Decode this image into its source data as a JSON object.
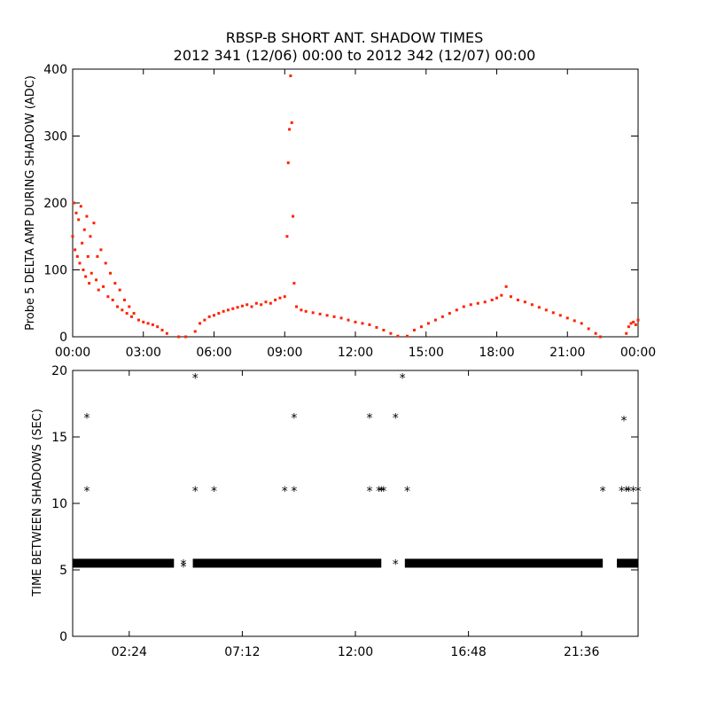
{
  "header": {
    "title": "RBSP-B SHORT ANT. SHADOW TIMES",
    "subtitle": "2012 341 (12/06) 00:00 to 2012 342 (12/07) 00:00"
  },
  "chart_data": [
    {
      "type": "scatter",
      "title": "",
      "xlabel": "",
      "ylabel": "Probe 5 DELTA AMP DURING SHADOW (ADC)",
      "xlim": [
        0,
        24
      ],
      "ylim": [
        0,
        400
      ],
      "x_ticks": [
        {
          "value": 0,
          "label": "00:00"
        },
        {
          "value": 3,
          "label": "03:00"
        },
        {
          "value": 6,
          "label": "06:00"
        },
        {
          "value": 9,
          "label": "09:00"
        },
        {
          "value": 12,
          "label": "12:00"
        },
        {
          "value": 15,
          "label": "15:00"
        },
        {
          "value": 18,
          "label": "18:00"
        },
        {
          "value": 21,
          "label": "21:00"
        },
        {
          "value": 24,
          "label": "00:00"
        }
      ],
      "y_ticks": [
        {
          "value": 0,
          "label": "0"
        },
        {
          "value": 100,
          "label": "100"
        },
        {
          "value": 200,
          "label": "200"
        },
        {
          "value": 300,
          "label": "300"
        },
        {
          "value": 400,
          "label": "400"
        }
      ],
      "color": "#ff2200",
      "series": [
        {
          "points": [
            [
              0.0,
              150
            ],
            [
              0.05,
              200
            ],
            [
              0.1,
              130
            ],
            [
              0.15,
              185
            ],
            [
              0.2,
              120
            ],
            [
              0.25,
              175
            ],
            [
              0.3,
              110
            ],
            [
              0.35,
              195
            ],
            [
              0.4,
              140
            ],
            [
              0.45,
              100
            ],
            [
              0.5,
              160
            ],
            [
              0.55,
              90
            ],
            [
              0.6,
              180
            ],
            [
              0.65,
              120
            ],
            [
              0.7,
              80
            ],
            [
              0.75,
              150
            ],
            [
              0.8,
              95
            ],
            [
              0.9,
              170
            ],
            [
              1.0,
              85
            ],
            [
              1.05,
              120
            ],
            [
              1.1,
              70
            ],
            [
              1.2,
              130
            ],
            [
              1.3,
              75
            ],
            [
              1.4,
              110
            ],
            [
              1.5,
              60
            ],
            [
              1.6,
              95
            ],
            [
              1.7,
              55
            ],
            [
              1.8,
              80
            ],
            [
              1.9,
              45
            ],
            [
              2.0,
              70
            ],
            [
              2.1,
              40
            ],
            [
              2.2,
              55
            ],
            [
              2.3,
              35
            ],
            [
              2.4,
              45
            ],
            [
              2.5,
              30
            ],
            [
              2.6,
              35
            ],
            [
              2.8,
              25
            ],
            [
              3.0,
              22
            ],
            [
              3.2,
              20
            ],
            [
              3.4,
              18
            ],
            [
              3.6,
              15
            ],
            [
              3.8,
              10
            ],
            [
              4.0,
              5
            ],
            [
              4.5,
              0
            ],
            [
              4.8,
              0
            ],
            [
              5.2,
              8
            ],
            [
              5.4,
              20
            ],
            [
              5.6,
              25
            ],
            [
              5.8,
              30
            ],
            [
              6.0,
              32
            ],
            [
              6.2,
              35
            ],
            [
              6.4,
              38
            ],
            [
              6.6,
              40
            ],
            [
              6.8,
              42
            ],
            [
              7.0,
              44
            ],
            [
              7.2,
              46
            ],
            [
              7.4,
              48
            ],
            [
              7.6,
              45
            ],
            [
              7.8,
              50
            ],
            [
              8.0,
              48
            ],
            [
              8.2,
              52
            ],
            [
              8.4,
              50
            ],
            [
              8.6,
              55
            ],
            [
              8.8,
              58
            ],
            [
              9.0,
              60
            ],
            [
              9.1,
              150
            ],
            [
              9.15,
              260
            ],
            [
              9.2,
              310
            ],
            [
              9.25,
              390
            ],
            [
              9.3,
              320
            ],
            [
              9.35,
              180
            ],
            [
              9.4,
              80
            ],
            [
              9.5,
              45
            ],
            [
              9.7,
              40
            ],
            [
              9.9,
              38
            ],
            [
              10.2,
              36
            ],
            [
              10.5,
              34
            ],
            [
              10.8,
              32
            ],
            [
              11.1,
              30
            ],
            [
              11.4,
              28
            ],
            [
              11.7,
              25
            ],
            [
              12.0,
              22
            ],
            [
              12.3,
              20
            ],
            [
              12.6,
              18
            ],
            [
              12.9,
              14
            ],
            [
              13.2,
              10
            ],
            [
              13.5,
              5
            ],
            [
              13.8,
              1
            ],
            [
              14.2,
              1
            ],
            [
              14.5,
              10
            ],
            [
              14.8,
              15
            ],
            [
              15.1,
              20
            ],
            [
              15.4,
              25
            ],
            [
              15.7,
              30
            ],
            [
              16.0,
              35
            ],
            [
              16.3,
              40
            ],
            [
              16.6,
              45
            ],
            [
              16.9,
              48
            ],
            [
              17.2,
              50
            ],
            [
              17.5,
              52
            ],
            [
              17.8,
              55
            ],
            [
              18.0,
              58
            ],
            [
              18.2,
              62
            ],
            [
              18.4,
              75
            ],
            [
              18.6,
              60
            ],
            [
              18.9,
              55
            ],
            [
              19.2,
              52
            ],
            [
              19.5,
              48
            ],
            [
              19.8,
              44
            ],
            [
              20.1,
              40
            ],
            [
              20.4,
              36
            ],
            [
              20.7,
              32
            ],
            [
              21.0,
              28
            ],
            [
              21.3,
              24
            ],
            [
              21.6,
              20
            ],
            [
              21.9,
              12
            ],
            [
              22.2,
              5
            ],
            [
              22.4,
              0
            ],
            [
              23.5,
              5
            ],
            [
              23.6,
              15
            ],
            [
              23.7,
              20
            ],
            [
              23.8,
              22
            ],
            [
              23.9,
              18
            ],
            [
              24.0,
              25
            ]
          ]
        }
      ]
    },
    {
      "type": "scatter",
      "title": "",
      "xlabel": "",
      "ylabel": "TIME BETWEEN SHADOWS (SEC)",
      "xlim": [
        0,
        24
      ],
      "ylim": [
        0,
        20
      ],
      "x_ticks": [
        {
          "value": 2.4,
          "label": "02:24"
        },
        {
          "value": 7.2,
          "label": "07:12"
        },
        {
          "value": 12.0,
          "label": "12:00"
        },
        {
          "value": 16.8,
          "label": "16:48"
        },
        {
          "value": 21.6,
          "label": "21:36"
        }
      ],
      "y_ticks": [
        {
          "value": 0,
          "label": "0"
        },
        {
          "value": 5,
          "label": "5"
        },
        {
          "value": 10,
          "label": "10"
        },
        {
          "value": 15,
          "label": "15"
        },
        {
          "value": 20,
          "label": "20"
        }
      ],
      "color": "#000000",
      "bands": [
        {
          "x0": 0.0,
          "x1": 4.3,
          "y": 5.5
        },
        {
          "x0": 5.1,
          "x1": 13.1,
          "y": 5.5
        },
        {
          "x0": 14.1,
          "x1": 22.5,
          "y": 5.5
        },
        {
          "x0": 23.1,
          "x1": 24.0,
          "y": 5.5
        }
      ],
      "points": [
        [
          0.6,
          16.5
        ],
        [
          0.6,
          11.0
        ],
        [
          2.2,
          5.5
        ],
        [
          4.7,
          5.5
        ],
        [
          4.7,
          5.3
        ],
        [
          5.2,
          19.5
        ],
        [
          5.2,
          11.0
        ],
        [
          6.0,
          11.0
        ],
        [
          9.0,
          11.0
        ],
        [
          9.4,
          16.5
        ],
        [
          9.4,
          11.0
        ],
        [
          12.6,
          16.5
        ],
        [
          12.6,
          11.0
        ],
        [
          13.0,
          11.0
        ],
        [
          13.1,
          11.0
        ],
        [
          13.2,
          11.0
        ],
        [
          13.7,
          16.5
        ],
        [
          13.7,
          5.5
        ],
        [
          14.0,
          19.5
        ],
        [
          14.2,
          11.0
        ],
        [
          19.8,
          5.5
        ],
        [
          22.5,
          11.0
        ],
        [
          23.3,
          11.0
        ],
        [
          23.4,
          16.3
        ],
        [
          23.5,
          11.0
        ],
        [
          23.6,
          11.0
        ],
        [
          23.8,
          11.0
        ],
        [
          24.0,
          11.0
        ]
      ]
    }
  ]
}
